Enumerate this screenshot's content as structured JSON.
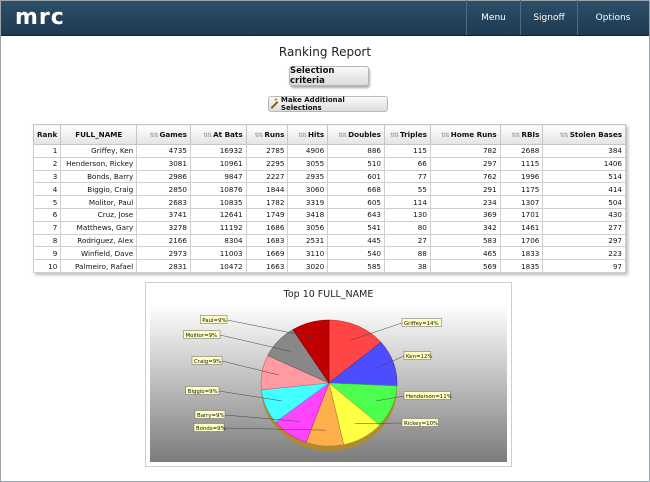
{
  "app": {
    "logo": "mrc"
  },
  "nav": {
    "menu": "Menu",
    "signoff": "Signoff",
    "options": "Options"
  },
  "report_title": "Ranking Report",
  "buttons": {
    "selection_criteria": "Selection criteria",
    "additional_selections": "Make Additional Selections"
  },
  "table": {
    "headers": [
      "Rank",
      "FULL_NAME",
      "Games",
      "At Bats",
      "Runs",
      "Hits",
      "Doubles",
      "Triples",
      "Home Runs",
      "RBIs",
      "Stolen Bases"
    ],
    "rows": [
      [
        "1",
        "Griffey, Ken",
        "4735",
        "16932",
        "2785",
        "4906",
        "886",
        "115",
        "782",
        "2688",
        "384"
      ],
      [
        "2",
        "Henderson, Rickey",
        "3081",
        "10961",
        "2295",
        "3055",
        "510",
        "66",
        "297",
        "1115",
        "1406"
      ],
      [
        "3",
        "Bonds, Barry",
        "2986",
        "9847",
        "2227",
        "2935",
        "601",
        "77",
        "762",
        "1996",
        "514"
      ],
      [
        "4",
        "Biggio, Craig",
        "2850",
        "10876",
        "1844",
        "3060",
        "668",
        "55",
        "291",
        "1175",
        "414"
      ],
      [
        "5",
        "Molitor, Paul",
        "2683",
        "10835",
        "1782",
        "3319",
        "605",
        "114",
        "234",
        "1307",
        "504"
      ],
      [
        "6",
        "Cruz, Jose",
        "3741",
        "12641",
        "1749",
        "3418",
        "643",
        "130",
        "369",
        "1701",
        "430"
      ],
      [
        "7",
        "Matthews, Gary",
        "3278",
        "11192",
        "1686",
        "3056",
        "541",
        "80",
        "342",
        "1461",
        "277"
      ],
      [
        "8",
        "Rodriguez, Alex",
        "2166",
        "8304",
        "1683",
        "2531",
        "445",
        "27",
        "583",
        "1706",
        "297"
      ],
      [
        "9",
        "Winfield, Dave",
        "2973",
        "11003",
        "1669",
        "3110",
        "540",
        "88",
        "465",
        "1833",
        "223"
      ],
      [
        "10",
        "Palmeiro, Rafael",
        "2831",
        "10472",
        "1663",
        "3020",
        "585",
        "38",
        "569",
        "1835",
        "97"
      ]
    ]
  },
  "chart_data": {
    "type": "pie",
    "title": "Top 10 FULL_NAME",
    "slices": [
      {
        "label": "Griffey=14%",
        "value": 14,
        "color": "#ff4545"
      },
      {
        "label": "Ken=12%",
        "value": 12,
        "color": "#4d4dff"
      },
      {
        "label": "Henderson=11%",
        "value": 11,
        "color": "#4dff4d"
      },
      {
        "label": "Rickey=10%",
        "value": 10,
        "color": "#ffff44"
      },
      {
        "label": "Bonds=9%",
        "value": 9,
        "color": "#ffb04d"
      },
      {
        "label": "Barry=9%",
        "value": 9,
        "color": "#ff44ff"
      },
      {
        "label": "Biggio=9%",
        "value": 9,
        "color": "#44ffff"
      },
      {
        "label": "Craig=9%",
        "value": 9,
        "color": "#ff9aa0"
      },
      {
        "label": "Molitor=9%",
        "value": 9,
        "color": "#888888"
      },
      {
        "label": "Paul=9%",
        "value": 9,
        "color": "#c00000"
      }
    ]
  }
}
